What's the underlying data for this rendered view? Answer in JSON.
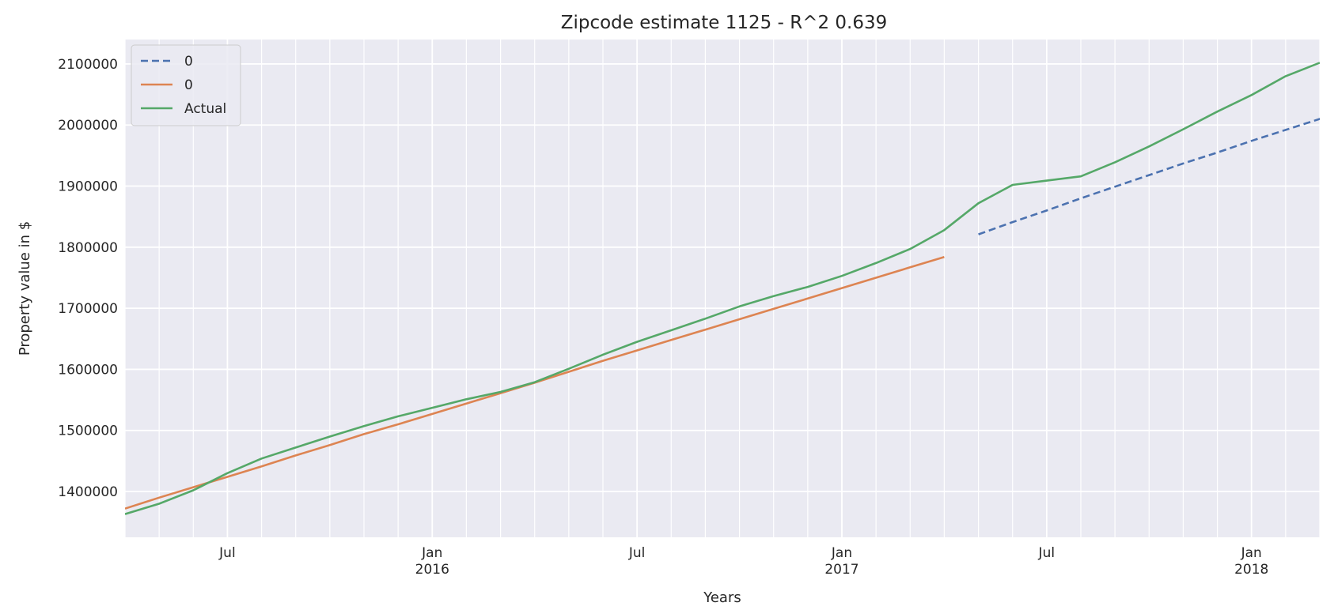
{
  "chart_data": {
    "type": "line",
    "title": "Zipcode estimate 1125 - R^2 0.639",
    "xlabel": "Years",
    "ylabel": "Property value in $",
    "xlim": [
      "2015-04",
      "2018-03"
    ],
    "ylim": [
      1325000,
      2140000
    ],
    "grid": true,
    "legend_position": "top-left",
    "x_ticks": [
      {
        "date": "2015-07",
        "label": "Jul",
        "sublabel": ""
      },
      {
        "date": "2016-01",
        "label": "Jan",
        "sublabel": "2016"
      },
      {
        "date": "2016-07",
        "label": "Jul",
        "sublabel": ""
      },
      {
        "date": "2017-01",
        "label": "Jan",
        "sublabel": "2017"
      },
      {
        "date": "2017-07",
        "label": "Jul",
        "sublabel": ""
      },
      {
        "date": "2018-01",
        "label": "Jan",
        "sublabel": "2018"
      }
    ],
    "y_ticks": [
      1400000,
      1500000,
      1600000,
      1700000,
      1800000,
      1900000,
      2000000,
      2100000
    ],
    "series": [
      {
        "name": "0",
        "style": "dashed",
        "color": "#4c72b0",
        "points": [
          {
            "x": "2017-05",
            "y": 1821000
          },
          {
            "x": "2017-06",
            "y": 1841000
          },
          {
            "x": "2017-07",
            "y": 1860000
          },
          {
            "x": "2017-08",
            "y": 1880000
          },
          {
            "x": "2017-09",
            "y": 1899000
          },
          {
            "x": "2017-10",
            "y": 1918000
          },
          {
            "x": "2017-11",
            "y": 1937000
          },
          {
            "x": "2017-12",
            "y": 1955000
          },
          {
            "x": "2018-01",
            "y": 1974000
          },
          {
            "x": "2018-02",
            "y": 1992000
          },
          {
            "x": "2018-03",
            "y": 2010000
          },
          {
            "x": "2018-04",
            "y": 2028000
          }
        ]
      },
      {
        "name": "0",
        "style": "solid",
        "color": "#dd8452",
        "points": [
          {
            "x": "2015-04",
            "y": 1372000
          },
          {
            "x": "2015-05",
            "y": 1390000
          },
          {
            "x": "2015-06",
            "y": 1407000
          },
          {
            "x": "2015-07",
            "y": 1424000
          },
          {
            "x": "2015-08",
            "y": 1441000
          },
          {
            "x": "2015-09",
            "y": 1459000
          },
          {
            "x": "2015-10",
            "y": 1476000
          },
          {
            "x": "2015-11",
            "y": 1494000
          },
          {
            "x": "2015-12",
            "y": 1510000
          },
          {
            "x": "2016-01",
            "y": 1527000
          },
          {
            "x": "2016-02",
            "y": 1544000
          },
          {
            "x": "2016-03",
            "y": 1561000
          },
          {
            "x": "2016-04",
            "y": 1578000
          },
          {
            "x": "2016-05",
            "y": 1596000
          },
          {
            "x": "2016-06",
            "y": 1614000
          },
          {
            "x": "2016-07",
            "y": 1631000
          },
          {
            "x": "2016-08",
            "y": 1648000
          },
          {
            "x": "2016-09",
            "y": 1665000
          },
          {
            "x": "2016-10",
            "y": 1682000
          },
          {
            "x": "2016-11",
            "y": 1699000
          },
          {
            "x": "2016-12",
            "y": 1716000
          },
          {
            "x": "2017-01",
            "y": 1733000
          },
          {
            "x": "2017-02",
            "y": 1750000
          },
          {
            "x": "2017-03",
            "y": 1767000
          },
          {
            "x": "2017-04",
            "y": 1784000
          }
        ]
      },
      {
        "name": "Actual",
        "style": "solid",
        "color": "#55a868",
        "points": [
          {
            "x": "2015-04",
            "y": 1363000
          },
          {
            "x": "2015-05",
            "y": 1380000
          },
          {
            "x": "2015-06",
            "y": 1402000
          },
          {
            "x": "2015-07",
            "y": 1430000
          },
          {
            "x": "2015-08",
            "y": 1454000
          },
          {
            "x": "2015-09",
            "y": 1472000
          },
          {
            "x": "2015-10",
            "y": 1490000
          },
          {
            "x": "2015-11",
            "y": 1507000
          },
          {
            "x": "2015-12",
            "y": 1523000
          },
          {
            "x": "2016-01",
            "y": 1537000
          },
          {
            "x": "2016-02",
            "y": 1551000
          },
          {
            "x": "2016-03",
            "y": 1563000
          },
          {
            "x": "2016-04",
            "y": 1579000
          },
          {
            "x": "2016-05",
            "y": 1601000
          },
          {
            "x": "2016-06",
            "y": 1624000
          },
          {
            "x": "2016-07",
            "y": 1645000
          },
          {
            "x": "2016-08",
            "y": 1664000
          },
          {
            "x": "2016-09",
            "y": 1683000
          },
          {
            "x": "2016-10",
            "y": 1703000
          },
          {
            "x": "2016-11",
            "y": 1720000
          },
          {
            "x": "2016-12",
            "y": 1735000
          },
          {
            "x": "2017-01",
            "y": 1753000
          },
          {
            "x": "2017-02",
            "y": 1774000
          },
          {
            "x": "2017-03",
            "y": 1797000
          },
          {
            "x": "2017-04",
            "y": 1828000
          },
          {
            "x": "2017-05",
            "y": 1872000
          },
          {
            "x": "2017-06",
            "y": 1902000
          },
          {
            "x": "2017-07",
            "y": 1909000
          },
          {
            "x": "2017-08",
            "y": 1916000
          },
          {
            "x": "2017-09",
            "y": 1939000
          },
          {
            "x": "2017-10",
            "y": 1965000
          },
          {
            "x": "2017-11",
            "y": 1993000
          },
          {
            "x": "2017-12",
            "y": 2022000
          },
          {
            "x": "2018-01",
            "y": 2049000
          },
          {
            "x": "2018-02",
            "y": 2080000
          },
          {
            "x": "2018-03",
            "y": 2102000
          }
        ]
      }
    ]
  }
}
